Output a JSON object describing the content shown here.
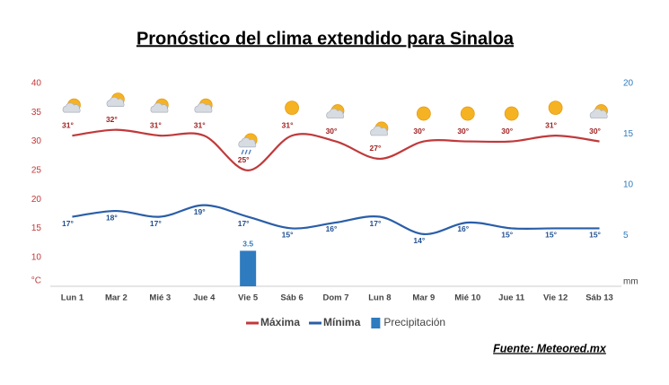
{
  "chart_data": {
    "type": "line",
    "title": "Pronóstico del clima extendido para Sinaloa",
    "categories": [
      "Lun 1",
      "Mar 2",
      "Mié 3",
      "Jue 4",
      "Vie 5",
      "Sáb 6",
      "Dom 7",
      "Lun 8",
      "Mar 9",
      "Mié 10",
      "Jue 11",
      "Vie 12",
      "Sáb 13"
    ],
    "series": [
      {
        "name": "Máxima",
        "color": "#c0393b",
        "type": "line",
        "values": [
          31,
          32,
          31,
          31,
          25,
          31,
          30,
          27,
          30,
          30,
          30,
          31,
          30
        ],
        "value_labels": [
          "31°",
          "32°",
          "31°",
          "31°",
          "25°",
          "31°",
          "30°",
          "27°",
          "30°",
          "30°",
          "30°",
          "31°",
          "30°"
        ]
      },
      {
        "name": "Mínima",
        "color": "#2a5ea8",
        "type": "line",
        "values": [
          17,
          18,
          17,
          19,
          17,
          15,
          16,
          17,
          14,
          16,
          15,
          15,
          15
        ],
        "value_labels": [
          "17°",
          "18°",
          "17°",
          "19°",
          "17°",
          "15°",
          "16°",
          "17°",
          "14°",
          "16°",
          "15°",
          "15°",
          "15°"
        ]
      },
      {
        "name": "Precipitación",
        "color": "#2e7bbf",
        "type": "bar",
        "axis": "y2",
        "values": [
          null,
          null,
          null,
          null,
          3.5,
          null,
          null,
          null,
          null,
          null,
          null,
          null,
          null
        ]
      }
    ],
    "y_axis_label": "°C",
    "y2_axis_label": "mm",
    "ylim": [
      5,
      40
    ],
    "yticks": [
      10,
      15,
      20,
      25,
      30,
      35,
      40
    ],
    "y2lim": [
      0,
      20
    ],
    "y2ticks": [
      5,
      10,
      15,
      20
    ],
    "grid": false,
    "source": "Fuente: Meteored.mx"
  }
}
